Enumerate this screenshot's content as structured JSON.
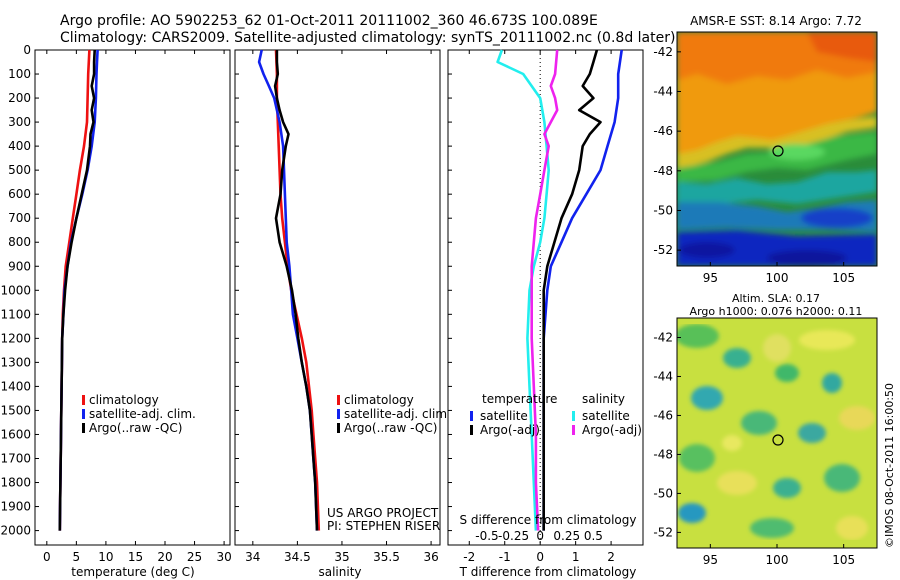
{
  "header": {
    "line1": "Argo profile: AO 5902253_62 01-Oct-2011 20111002_360 46.673S 100.089E",
    "line2": "Climatology: CARS2009. Satellite-adjusted climatology: synTS_20111002.nc (0.8d later)"
  },
  "colors": {
    "red": "#ee1111",
    "blue": "#1122ee",
    "black": "#000000",
    "cyan": "#22eeee",
    "magenta": "#ee22ee"
  },
  "depth_ticks": [
    0,
    100,
    200,
    300,
    400,
    500,
    600,
    700,
    800,
    900,
    1000,
    1100,
    1200,
    1300,
    1400,
    1500,
    1600,
    1700,
    1800,
    1900,
    2000
  ],
  "chart_data": [
    {
      "id": "temperature",
      "type": "line",
      "xlabel": "temperature (deg C)",
      "ylabel": "",
      "xlim": [
        -2,
        31
      ],
      "ylim": [
        2060,
        0
      ],
      "xticks": [
        0,
        5,
        10,
        15,
        20,
        25,
        30
      ],
      "legend": [
        "climatology",
        "satellite-adj. clim.",
        "Argo(..raw -QC)"
      ],
      "series": [
        {
          "name": "climatology",
          "color": "red",
          "points": [
            [
              7.2,
              0
            ],
            [
              7.1,
              50
            ],
            [
              7.0,
              100
            ],
            [
              6.9,
              200
            ],
            [
              6.8,
              300
            ],
            [
              6.3,
              400
            ],
            [
              5.6,
              500
            ],
            [
              5.0,
              600
            ],
            [
              4.4,
              700
            ],
            [
              3.8,
              800
            ],
            [
              3.2,
              900
            ],
            [
              2.9,
              1000
            ],
            [
              2.7,
              1100
            ],
            [
              2.6,
              1200
            ],
            [
              2.5,
              1400
            ],
            [
              2.4,
              1600
            ],
            [
              2.3,
              1800
            ],
            [
              2.2,
              2000
            ]
          ]
        },
        {
          "name": "satellite-adj. clim.",
          "color": "blue",
          "points": [
            [
              8.6,
              0
            ],
            [
              8.5,
              50
            ],
            [
              8.4,
              100
            ],
            [
              8.3,
              200
            ],
            [
              8.1,
              300
            ],
            [
              7.6,
              400
            ],
            [
              6.9,
              500
            ],
            [
              6.0,
              600
            ],
            [
              5.0,
              700
            ],
            [
              4.1,
              800
            ],
            [
              3.5,
              900
            ],
            [
              3.0,
              1000
            ],
            [
              2.8,
              1100
            ],
            [
              2.6,
              1200
            ],
            [
              2.5,
              1400
            ],
            [
              2.4,
              1600
            ],
            [
              2.3,
              1800
            ],
            [
              2.2,
              2000
            ]
          ]
        },
        {
          "name": "Argo(..raw -QC)",
          "color": "black",
          "points": [
            [
              8.1,
              0
            ],
            [
              8.0,
              50
            ],
            [
              8.0,
              100
            ],
            [
              7.6,
              150
            ],
            [
              8.0,
              200
            ],
            [
              7.6,
              250
            ],
            [
              7.9,
              300
            ],
            [
              7.4,
              350
            ],
            [
              7.3,
              400
            ],
            [
              6.8,
              500
            ],
            [
              5.9,
              600
            ],
            [
              5.0,
              700
            ],
            [
              4.2,
              800
            ],
            [
              3.5,
              900
            ],
            [
              3.1,
              1000
            ],
            [
              2.8,
              1100
            ],
            [
              2.6,
              1200
            ],
            [
              2.5,
              1400
            ],
            [
              2.4,
              1600
            ],
            [
              2.3,
              1800
            ],
            [
              2.2,
              2000
            ]
          ]
        }
      ]
    },
    {
      "id": "salinity",
      "type": "line",
      "xlabel": "salinity",
      "ylabel": "",
      "xlim": [
        33.8,
        36.1
      ],
      "ylim": [
        2060,
        0
      ],
      "xticks": [
        34,
        34.5,
        35,
        35.5,
        36
      ],
      "xticklabels": [
        "34",
        "34.5",
        "35",
        "35.5",
        "36"
      ],
      "legend": [
        "climatology",
        "satellite-adj. clim.",
        "Argo(..raw -QC)"
      ],
      "annotations": [
        "US ARGO PROJECT",
        "PI: STEPHEN RISER"
      ],
      "series": [
        {
          "name": "climatology",
          "color": "red",
          "points": [
            [
              34.26,
              0
            ],
            [
              34.27,
              100
            ],
            [
              34.27,
              200
            ],
            [
              34.28,
              300
            ],
            [
              34.29,
              400
            ],
            [
              34.3,
              500
            ],
            [
              34.31,
              600
            ],
            [
              34.33,
              700
            ],
            [
              34.36,
              800
            ],
            [
              34.39,
              900
            ],
            [
              34.43,
              1000
            ],
            [
              34.49,
              1100
            ],
            [
              34.55,
              1200
            ],
            [
              34.6,
              1300
            ],
            [
              34.63,
              1400
            ],
            [
              34.66,
              1500
            ],
            [
              34.68,
              1600
            ],
            [
              34.7,
              1700
            ],
            [
              34.72,
              1800
            ],
            [
              34.73,
              1900
            ],
            [
              34.74,
              2000
            ]
          ]
        },
        {
          "name": "satellite-adj. clim.",
          "color": "blue",
          "points": [
            [
              34.1,
              0
            ],
            [
              34.07,
              50
            ],
            [
              34.12,
              100
            ],
            [
              34.18,
              150
            ],
            [
              34.24,
              200
            ],
            [
              34.3,
              300
            ],
            [
              34.34,
              400
            ],
            [
              34.35,
              500
            ],
            [
              34.36,
              600
            ],
            [
              34.37,
              700
            ],
            [
              34.38,
              800
            ],
            [
              34.41,
              900
            ],
            [
              34.43,
              1000
            ],
            [
              34.45,
              1100
            ],
            [
              34.5,
              1200
            ],
            [
              34.55,
              1300
            ],
            [
              34.6,
              1400
            ],
            [
              34.64,
              1500
            ],
            [
              34.66,
              1600
            ],
            [
              34.68,
              1700
            ],
            [
              34.7,
              1800
            ],
            [
              34.71,
              1900
            ],
            [
              34.72,
              2000
            ]
          ]
        },
        {
          "name": "Argo(..raw -QC)",
          "color": "black",
          "points": [
            [
              34.27,
              0
            ],
            [
              34.27,
              50
            ],
            [
              34.28,
              100
            ],
            [
              34.25,
              150
            ],
            [
              34.27,
              200
            ],
            [
              34.3,
              250
            ],
            [
              34.34,
              300
            ],
            [
              34.4,
              350
            ],
            [
              34.37,
              400
            ],
            [
              34.33,
              500
            ],
            [
              34.31,
              600
            ],
            [
              34.26,
              700
            ],
            [
              34.3,
              800
            ],
            [
              34.38,
              900
            ],
            [
              34.44,
              1000
            ],
            [
              34.48,
              1100
            ],
            [
              34.51,
              1200
            ],
            [
              34.55,
              1300
            ],
            [
              34.6,
              1400
            ],
            [
              34.64,
              1500
            ],
            [
              34.66,
              1600
            ],
            [
              34.68,
              1700
            ],
            [
              34.7,
              1800
            ],
            [
              34.71,
              1900
            ],
            [
              34.72,
              2000
            ]
          ]
        }
      ]
    },
    {
      "id": "difference",
      "type": "line",
      "xlabel": "T difference from climatology",
      "ylabel": "",
      "xlim": [
        -2.6,
        2.9
      ],
      "ylim": [
        2060,
        0
      ],
      "xticks": [
        -2,
        -1,
        0,
        1,
        2
      ],
      "secondary_xaxis": {
        "label": "S difference from climatology",
        "ticks": [
          -0.5,
          -0.25,
          0,
          0.25,
          0.5
        ],
        "ticklabels": [
          "-0.5",
          "-0.25",
          "0",
          "0.25",
          "0.5"
        ]
      },
      "legend_headers": [
        "temperature",
        "salinity"
      ],
      "legend": [
        "satellite",
        "Argo(-adj)",
        "satellite",
        "Argo(-adj)"
      ],
      "series": [
        {
          "name": "satellite",
          "group": "temperature",
          "color": "blue",
          "points": [
            [
              2.3,
              0
            ],
            [
              2.2,
              100
            ],
            [
              2.2,
              200
            ],
            [
              2.1,
              300
            ],
            [
              1.9,
              400
            ],
            [
              1.7,
              500
            ],
            [
              1.3,
              600
            ],
            [
              0.9,
              700
            ],
            [
              0.6,
              800
            ],
            [
              0.3,
              900
            ],
            [
              0.2,
              1000
            ],
            [
              0.1,
              1200
            ],
            [
              0.1,
              1500
            ],
            [
              0.1,
              2000
            ]
          ]
        },
        {
          "name": "Argo(-adj)",
          "group": "temperature",
          "color": "black",
          "points": [
            [
              1.6,
              0
            ],
            [
              1.5,
              50
            ],
            [
              1.4,
              100
            ],
            [
              1.2,
              150
            ],
            [
              1.5,
              200
            ],
            [
              1.1,
              250
            ],
            [
              1.7,
              300
            ],
            [
              1.4,
              350
            ],
            [
              1.2,
              400
            ],
            [
              1.1,
              500
            ],
            [
              0.9,
              600
            ],
            [
              0.6,
              700
            ],
            [
              0.4,
              800
            ],
            [
              0.2,
              900
            ],
            [
              0.1,
              1000
            ],
            [
              0.1,
              1200
            ],
            [
              0.1,
              1500
            ],
            [
              0.1,
              2000
            ]
          ]
        },
        {
          "name": "satellite",
          "group": "salinity",
          "color": "cyan",
          "points": [
            [
              -0.18,
              0
            ],
            [
              -0.2,
              50
            ],
            [
              -0.08,
              100
            ],
            [
              0.0,
              200
            ],
            [
              0.02,
              300
            ],
            [
              0.03,
              400
            ],
            [
              0.04,
              500
            ],
            [
              0.03,
              600
            ],
            [
              0.02,
              700
            ],
            [
              0.0,
              800
            ],
            [
              -0.03,
              900
            ],
            [
              -0.05,
              1000
            ],
            [
              -0.06,
              1200
            ],
            [
              -0.05,
              1400
            ],
            [
              -0.04,
              1600
            ],
            [
              -0.03,
              1800
            ],
            [
              -0.02,
              2000
            ]
          ]
        },
        {
          "name": "Argo(-adj)",
          "group": "salinity",
          "color": "magenta",
          "points": [
            [
              0.08,
              0
            ],
            [
              0.07,
              100
            ],
            [
              0.05,
              150
            ],
            [
              0.07,
              200
            ],
            [
              0.08,
              250
            ],
            [
              0.05,
              300
            ],
            [
              0.02,
              350
            ],
            [
              0.04,
              400
            ],
            [
              0.02,
              500
            ],
            [
              0.0,
              600
            ],
            [
              -0.02,
              700
            ],
            [
              -0.03,
              800
            ],
            [
              -0.04,
              900
            ],
            [
              -0.04,
              1000
            ],
            [
              -0.04,
              1200
            ],
            [
              -0.03,
              1400
            ],
            [
              -0.02,
              1600
            ],
            [
              -0.02,
              1800
            ],
            [
              -0.01,
              2000
            ]
          ]
        }
      ]
    },
    {
      "id": "sst_map",
      "type": "heatmap",
      "title": "AMSR-E SST: 8.14  Argo: 7.72",
      "xlim": [
        92.5,
        107.5
      ],
      "ylim": [
        -52.8,
        -41.0
      ],
      "xticks": [
        95,
        100,
        105
      ],
      "yticks": [
        -42,
        -44,
        -46,
        -48,
        -50,
        -52
      ],
      "marker": {
        "lon": 100.089,
        "lat": -46.673
      }
    },
    {
      "id": "sla_map",
      "type": "heatmap",
      "title": "Altim. SLA: 0.17",
      "subtitle": "Argo h1000: 0.076  h2000: 0.11",
      "xlim": [
        92.5,
        107.5
      ],
      "ylim": [
        -52.8,
        -41.0
      ],
      "xticks": [
        95,
        100,
        105
      ],
      "yticks": [
        -42,
        -44,
        -46,
        -48,
        -50,
        -52
      ],
      "marker": {
        "lon": 100.089,
        "lat": -46.673
      }
    }
  ],
  "footer": {
    "credit": "©IMOS 08-Oct-2011 16:00:50"
  }
}
